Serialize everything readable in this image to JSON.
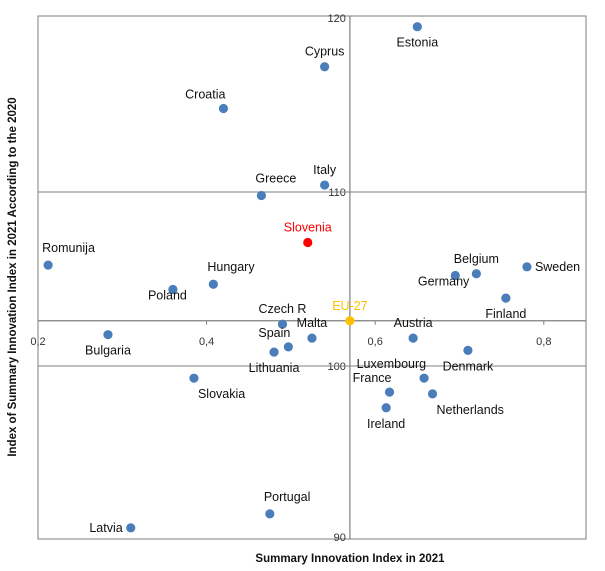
{
  "chart_data": {
    "type": "scatter",
    "title": "",
    "xlabel": "Summary Innovation Index in 2021",
    "ylabel": "Index of Summary Innovation Index in 2021 According to the 2020",
    "xlim": [
      0.2,
      0.85
    ],
    "ylim": [
      90,
      120
    ],
    "x_ticks": [
      {
        "value": 0.2,
        "label": "0,2"
      },
      {
        "value": 0.4,
        "label": "0,4"
      },
      {
        "value": 0.6,
        "label": "0,6"
      },
      {
        "value": 0.8,
        "label": "0,8"
      }
    ],
    "y_ticks": [
      {
        "value": 90,
        "label": "90"
      },
      {
        "value": 100,
        "label": "100"
      },
      {
        "value": 110,
        "label": "110"
      },
      {
        "value": 120,
        "label": "120"
      }
    ],
    "crosshair": {
      "x": 0.57,
      "y": 102.6
    },
    "grid": false,
    "colors": {
      "default": "#4a7ebb",
      "highlight": "#ff0000",
      "eu": "#ffc000",
      "frame": "#7f7f7f"
    },
    "points": [
      {
        "name": "Estonia",
        "x": 0.65,
        "y": 119.5,
        "label_pos": "below"
      },
      {
        "name": "Cyprus",
        "x": 0.54,
        "y": 117.2,
        "label_pos": "above"
      },
      {
        "name": "Croatia",
        "x": 0.42,
        "y": 114.8,
        "label_pos": "above-left"
      },
      {
        "name": "Italy",
        "x": 0.54,
        "y": 110.4,
        "label_pos": "above"
      },
      {
        "name": "Greece",
        "x": 0.465,
        "y": 109.8,
        "label_pos": "above-right"
      },
      {
        "name": "Slovenia",
        "x": 0.52,
        "y": 107.1,
        "label_pos": "above",
        "color": "highlight"
      },
      {
        "name": "Romunija",
        "x": 0.212,
        "y": 105.8,
        "label_pos": "above-right"
      },
      {
        "name": "Sweden",
        "x": 0.78,
        "y": 105.7,
        "label_pos": "right"
      },
      {
        "name": "Belgium",
        "x": 0.72,
        "y": 105.3,
        "label_pos": "above"
      },
      {
        "name": "Germany",
        "x": 0.695,
        "y": 105.2,
        "label_pos": "below-left"
      },
      {
        "name": "Hungary",
        "x": 0.408,
        "y": 104.7,
        "label_pos": "above-right"
      },
      {
        "name": "Poland",
        "x": 0.36,
        "y": 104.4,
        "label_pos": "below-left"
      },
      {
        "name": "Finland",
        "x": 0.755,
        "y": 103.9,
        "label_pos": "below"
      },
      {
        "name": "EU-27",
        "x": 0.57,
        "y": 102.6,
        "label_pos": "above",
        "color": "eu"
      },
      {
        "name": "Czech R",
        "x": 0.49,
        "y": 102.4,
        "label_pos": "above"
      },
      {
        "name": "Austria",
        "x": 0.645,
        "y": 101.6,
        "label_pos": "above"
      },
      {
        "name": "Malta",
        "x": 0.525,
        "y": 101.6,
        "label_pos": "above"
      },
      {
        "name": "Bulgaria",
        "x": 0.283,
        "y": 101.8,
        "label_pos": "below"
      },
      {
        "name": "Spain",
        "x": 0.497,
        "y": 101.1,
        "label_pos": "above-left"
      },
      {
        "name": "Denmark",
        "x": 0.71,
        "y": 100.9,
        "label_pos": "below"
      },
      {
        "name": "Lithuania",
        "x": 0.48,
        "y": 100.8,
        "label_pos": "below"
      },
      {
        "name": "Slovakia",
        "x": 0.385,
        "y": 99.3,
        "label_pos": "below-right"
      },
      {
        "name": "Luxembourg",
        "x": 0.658,
        "y": 99.3,
        "label_pos": "above-left"
      },
      {
        "name": "France",
        "x": 0.617,
        "y": 98.5,
        "label_pos": "above-left"
      },
      {
        "name": "Netherlands",
        "x": 0.668,
        "y": 98.4,
        "label_pos": "below-right"
      },
      {
        "name": "Ireland",
        "x": 0.613,
        "y": 97.6,
        "label_pos": "below"
      },
      {
        "name": "Portugal",
        "x": 0.475,
        "y": 91.5,
        "label_pos": "above-right"
      },
      {
        "name": "Latvia",
        "x": 0.31,
        "y": 90.7,
        "label_pos": "left"
      }
    ]
  }
}
